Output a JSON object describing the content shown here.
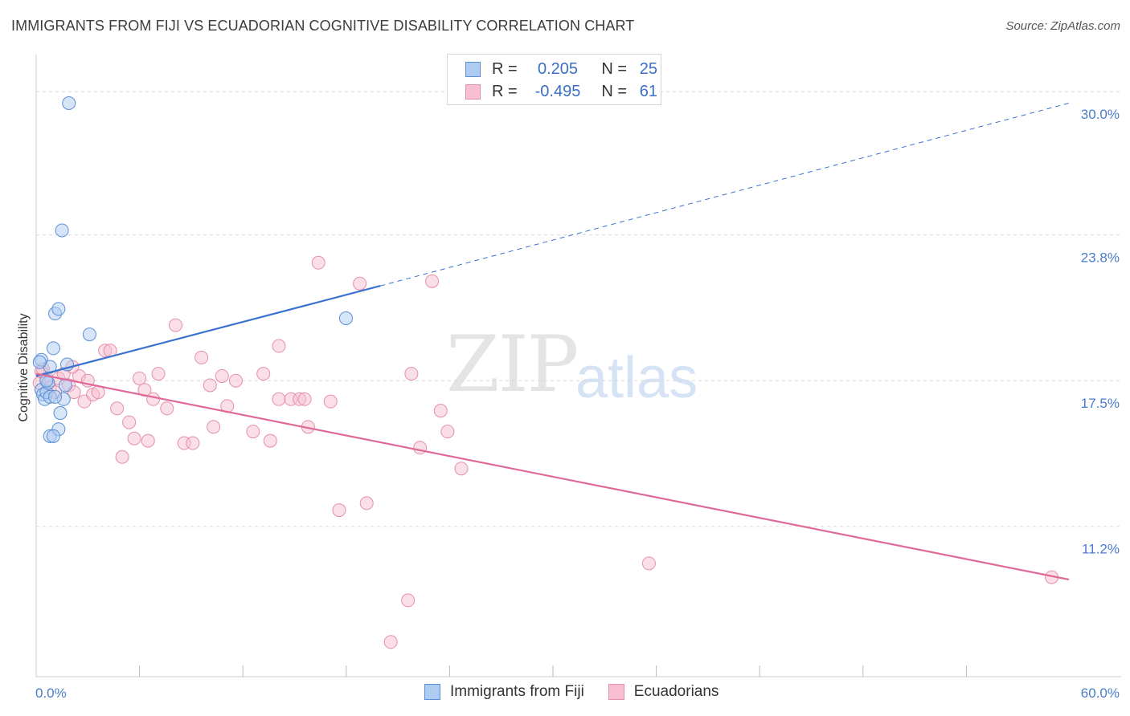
{
  "title": "IMMIGRANTS FROM FIJI VS ECUADORIAN COGNITIVE DISABILITY CORRELATION CHART",
  "source": "Source: ZipAtlas.com",
  "watermark": {
    "zip": "ZIP",
    "atlas": "atlas"
  },
  "legend": {
    "rows": [
      {
        "r_label": "R =",
        "r_value": "0.205",
        "n_label": "N =",
        "n_value": "25"
      },
      {
        "r_label": "R =",
        "r_value": "-0.495",
        "n_label": "N =",
        "n_value": "61"
      }
    ]
  },
  "bottom_legend": [
    "Immigrants from Fiji",
    "Ecuadorians"
  ],
  "colors": {
    "fiji_fill": "#aecbf2",
    "fiji_stroke": "#5b8fd6",
    "fiji_line": "#3a72cf",
    "ecu_fill": "#f7bfd0",
    "ecu_stroke": "#e48fab",
    "ecu_line": "#e0699a",
    "tick": "#4a7cc9",
    "grid": "#d9d9d9"
  },
  "chart_data": {
    "type": "scatter",
    "ylabel": "Cognitive Disability",
    "xlim": [
      0,
      60
    ],
    "ylim": [
      4.7,
      31.6
    ],
    "x_tick_labels": [
      "0.0%",
      "60.0%"
    ],
    "y_ticks": [
      11.2,
      17.5,
      23.8,
      30.0
    ],
    "y_tick_labels": [
      "11.2%",
      "17.5%",
      "23.8%",
      "30.0%"
    ],
    "grid": true,
    "series": [
      {
        "name": "Immigrants from Fiji",
        "points": [
          [
            0.3,
            18.4
          ],
          [
            0.3,
            17.1
          ],
          [
            0.4,
            16.9
          ],
          [
            0.5,
            16.7
          ],
          [
            0.6,
            17.0
          ],
          [
            0.7,
            17.4
          ],
          [
            0.8,
            18.1
          ],
          [
            0.8,
            15.1
          ],
          [
            0.8,
            16.8
          ],
          [
            1.0,
            18.9
          ],
          [
            1.1,
            20.4
          ],
          [
            1.3,
            20.6
          ],
          [
            1.3,
            15.4
          ],
          [
            1.4,
            16.1
          ],
          [
            1.0,
            15.1
          ],
          [
            1.6,
            16.7
          ],
          [
            1.8,
            18.2
          ],
          [
            1.5,
            24.0
          ],
          [
            1.9,
            29.5
          ],
          [
            3.1,
            19.5
          ],
          [
            0.6,
            17.5
          ],
          [
            1.1,
            16.8
          ],
          [
            1.7,
            17.3
          ],
          [
            18.0,
            20.2
          ],
          [
            0.2,
            18.3
          ]
        ],
        "trend": {
          "x0": 0,
          "y0": 17.7,
          "x1": 20,
          "y1": 21.6,
          "x_end": 60,
          "y_end": 29.5
        }
      },
      {
        "name": "Ecuadorians",
        "points": [
          [
            0.2,
            17.4
          ],
          [
            0.4,
            18.0
          ],
          [
            0.6,
            17.6
          ],
          [
            0.8,
            17.2
          ],
          [
            1.1,
            17.0
          ],
          [
            1.3,
            17.6
          ],
          [
            1.6,
            17.8
          ],
          [
            1.9,
            17.3
          ],
          [
            2.2,
            17.0
          ],
          [
            2.5,
            17.7
          ],
          [
            2.8,
            16.6
          ],
          [
            3.0,
            17.5
          ],
          [
            3.3,
            16.9
          ],
          [
            3.6,
            17.0
          ],
          [
            4.0,
            18.8
          ],
          [
            4.3,
            18.8
          ],
          [
            4.7,
            16.3
          ],
          [
            5.0,
            14.2
          ],
          [
            5.4,
            15.7
          ],
          [
            5.7,
            15.0
          ],
          [
            6.0,
            17.6
          ],
          [
            6.5,
            14.9
          ],
          [
            6.8,
            16.7
          ],
          [
            7.1,
            17.8
          ],
          [
            7.6,
            16.3
          ],
          [
            8.1,
            19.9
          ],
          [
            8.6,
            14.8
          ],
          [
            9.1,
            14.8
          ],
          [
            9.6,
            18.5
          ],
          [
            10.3,
            15.5
          ],
          [
            10.8,
            17.7
          ],
          [
            11.1,
            16.4
          ],
          [
            11.6,
            17.5
          ],
          [
            12.6,
            15.3
          ],
          [
            13.2,
            17.8
          ],
          [
            13.6,
            14.9
          ],
          [
            14.1,
            16.7
          ],
          [
            14.8,
            16.7
          ],
          [
            15.3,
            16.7
          ],
          [
            14.1,
            19.0
          ],
          [
            15.6,
            16.7
          ],
          [
            15.8,
            15.5
          ],
          [
            16.4,
            22.6
          ],
          [
            17.1,
            16.6
          ],
          [
            17.6,
            11.9
          ],
          [
            18.8,
            21.7
          ],
          [
            19.2,
            12.2
          ],
          [
            20.6,
            6.2
          ],
          [
            21.6,
            8.0
          ],
          [
            21.8,
            17.8
          ],
          [
            22.3,
            14.6
          ],
          [
            23.0,
            21.8
          ],
          [
            23.5,
            16.2
          ],
          [
            23.9,
            15.3
          ],
          [
            24.7,
            13.7
          ],
          [
            35.6,
            9.6
          ],
          [
            59.0,
            9.0
          ],
          [
            2.1,
            18.1
          ],
          [
            6.3,
            17.1
          ],
          [
            0.3,
            17.9
          ],
          [
            10.1,
            17.3
          ]
        ],
        "trend": {
          "x0": 0,
          "y0": 17.8,
          "x1": 60,
          "y1": 8.9
        }
      }
    ]
  }
}
